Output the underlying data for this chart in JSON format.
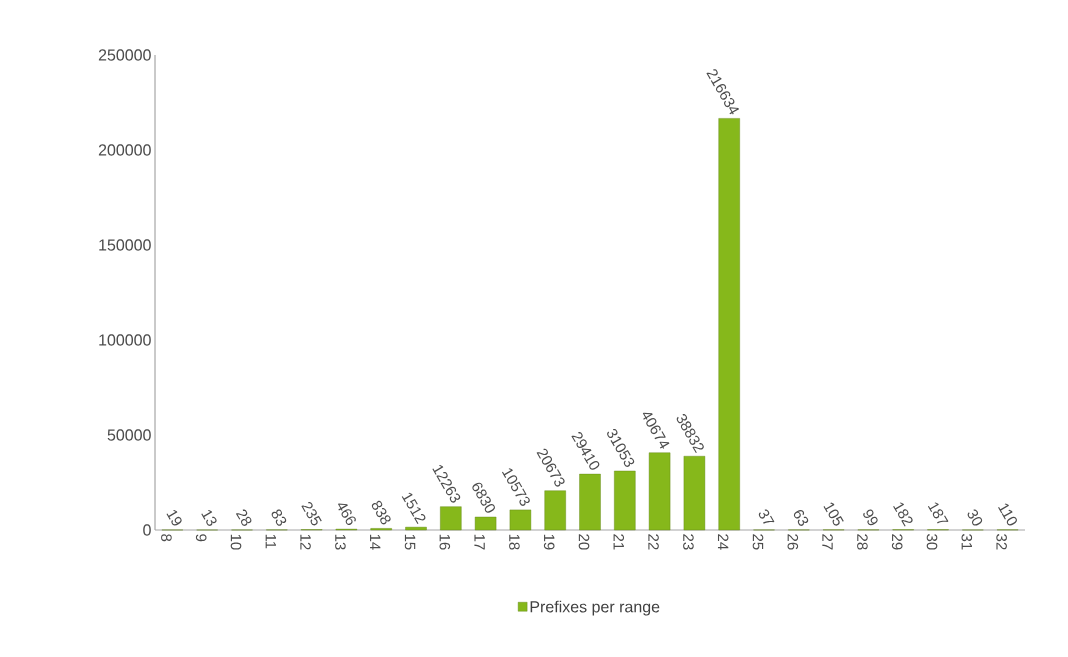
{
  "chart_data": {
    "type": "bar",
    "categories": [
      "8",
      "9",
      "10",
      "11",
      "12",
      "13",
      "14",
      "15",
      "16",
      "17",
      "18",
      "19",
      "20",
      "21",
      "22",
      "23",
      "24",
      "25",
      "26",
      "27",
      "28",
      "29",
      "30",
      "31",
      "32"
    ],
    "series": [
      {
        "name": "Prefixes per range",
        "color": "#86b81b",
        "values": [
          19,
          13,
          28,
          83,
          235,
          466,
          838,
          1512,
          12263,
          6830,
          10573,
          20673,
          29410,
          31053,
          40674,
          38832,
          216634,
          37,
          63,
          105,
          99,
          182,
          187,
          30,
          110
        ]
      }
    ],
    "ylim": [
      0,
      250000
    ],
    "yticks": [
      0,
      50000,
      100000,
      150000,
      200000,
      250000
    ],
    "data_labels": true,
    "legend": "bottom",
    "grid": false
  }
}
